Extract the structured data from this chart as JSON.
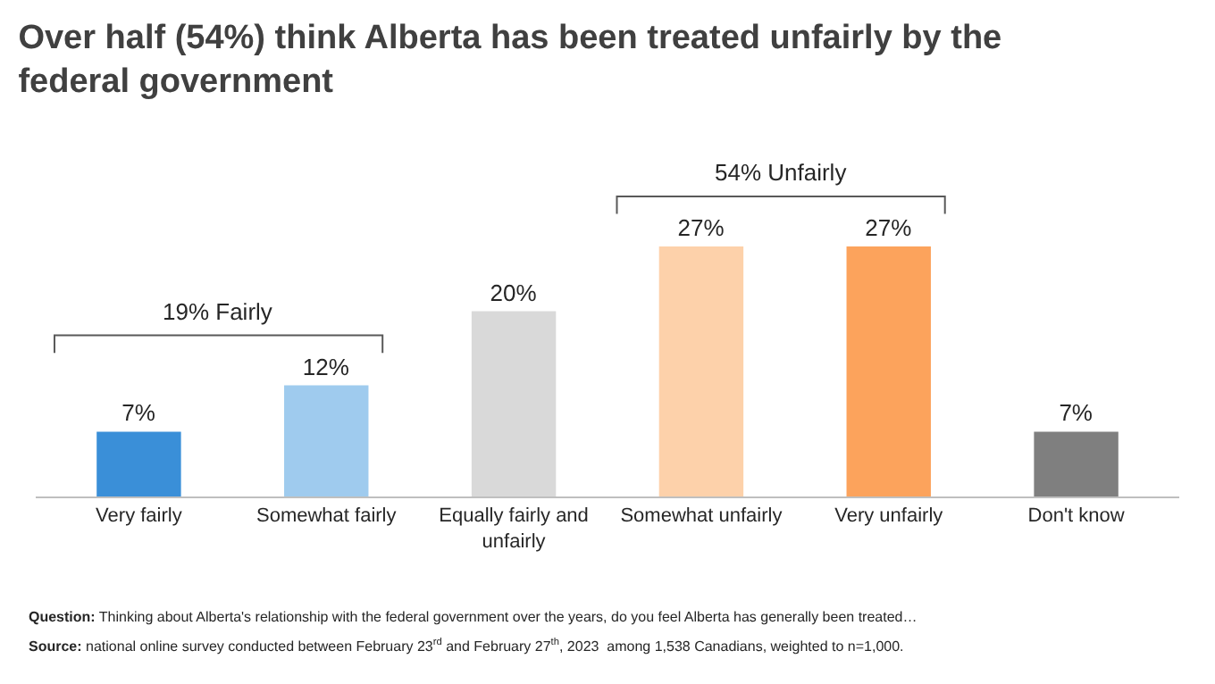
{
  "chart_data": {
    "type": "bar",
    "title": "Over half (54%) think Alberta has been treated unfairly by the federal government",
    "categories": [
      "Very fairly",
      "Somewhat fairly",
      "Equally fairly and unfairly",
      "Somewhat unfairly",
      "Very unfairly",
      "Don't know"
    ],
    "values": [
      7,
      12,
      20,
      27,
      27,
      7
    ],
    "colors": [
      "#3a8fd8",
      "#9fcbee",
      "#d9d9d9",
      "#fdd1aa",
      "#fca35c",
      "#7f7f7f"
    ],
    "value_labels": [
      "7%",
      "12%",
      "20%",
      "27%",
      "27%",
      "7%"
    ],
    "annotations": [
      "19% Fairly",
      "54% Unfairly",
      "Question: Thinking about Alberta's relationship with the federal government over the years, do you feel Alberta has generally been treated…",
      "Source: national online survey conducted between February 23$^{rd}$ and February 27$^{th}$, 2023  among 1,538 Canadians, weighted to n=1,000."
    ]
  }
}
